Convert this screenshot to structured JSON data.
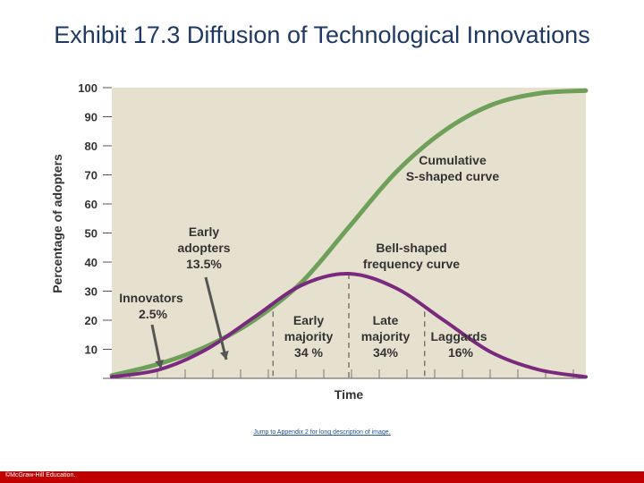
{
  "slide": {
    "title": "Exhibit 17.3 Diffusion of Technological Innovations",
    "appendix_link": "Jump to Appendix 2 for long description of image.",
    "copyright": "©McGraw-Hill Education."
  },
  "colors": {
    "plot_bg": "#e6e1cf",
    "cumulative": "#6fa05a",
    "bell": "#7a2a7e",
    "text": "#333333",
    "axis": "#555555",
    "title": "#1f3864",
    "footer": "#c00000"
  },
  "chart_data": {
    "type": "line",
    "ylabel": "Percentage of adopters",
    "xlabel": "Time",
    "ylim": [
      0,
      100
    ],
    "xlim": [
      0,
      100
    ],
    "yticks": [
      10,
      20,
      30,
      40,
      50,
      60,
      70,
      80,
      90,
      100
    ],
    "series": [
      {
        "name": "Cumulative S-shaped curve",
        "x": [
          0,
          10,
          20,
          30,
          40,
          50,
          60,
          70,
          80,
          90,
          100
        ],
        "y": [
          1,
          5,
          11,
          20,
          33,
          52,
          71,
          85,
          94,
          98,
          99
        ]
      },
      {
        "name": "Bell-shaped frequency curve",
        "x": [
          0,
          10,
          20,
          30,
          40,
          50,
          60,
          70,
          80,
          90,
          100
        ],
        "y": [
          0.5,
          3,
          10,
          21,
          32,
          36,
          31,
          20,
          9,
          3,
          0.5
        ]
      }
    ],
    "annotations": {
      "cumulative_line1": "Cumulative",
      "cumulative_line2": "S-shaped curve",
      "bell_line1": "Bell-shaped",
      "bell_line2": "frequency curve",
      "innovators_line1": "Innovators",
      "innovators_line2": "2.5%",
      "early_adopters_line1": "Early",
      "early_adopters_line2": "adopters",
      "early_adopters_line3": "13.5%",
      "early_majority_line1": "Early",
      "early_majority_line2": "majority",
      "early_majority_line3": "34 %",
      "late_majority_line1": "Late",
      "late_majority_line2": "majority",
      "late_majority_line3": "34%",
      "laggards_line1": "Laggards",
      "laggards_line2": "16%"
    }
  }
}
